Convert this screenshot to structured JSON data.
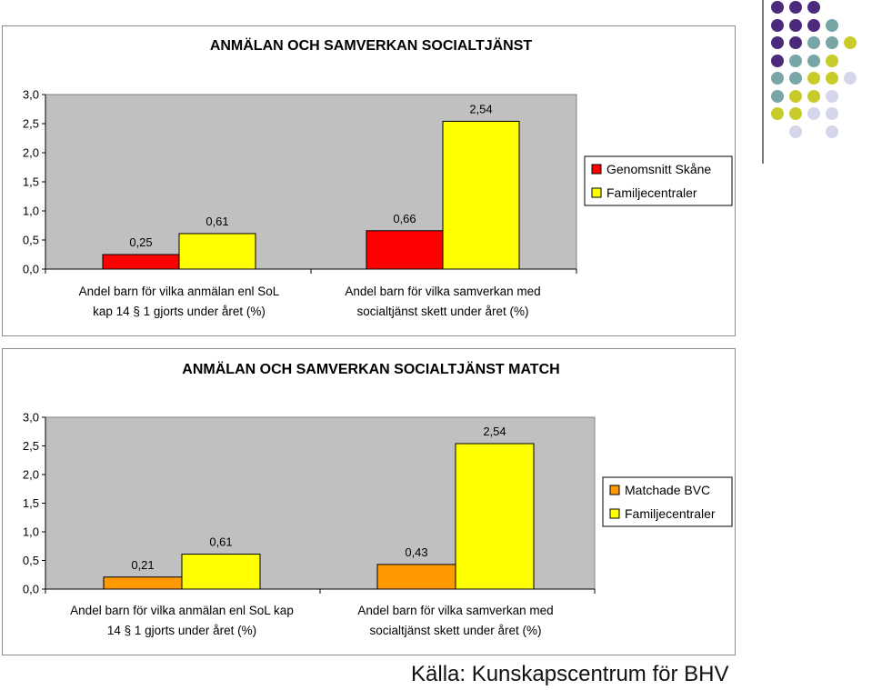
{
  "chart_data": [
    {
      "type": "bar",
      "title": "ANMÄLAN OCH SAMVERKAN SOCIALTJÄNST",
      "ylim": [
        0,
        3
      ],
      "yticks": [
        "3,0",
        "2,5",
        "2,0",
        "1,5",
        "1,0",
        "0,5",
        "0,0"
      ],
      "grid": false,
      "legend": "right",
      "categories": [
        [
          "Andel barn för vilka anmälan enl SoL",
          "kap 14 § 1 gjorts under året (%)"
        ],
        [
          "Andel barn för vilka samverkan med",
          "socialtjänst skett under året (%)"
        ]
      ],
      "series": [
        {
          "name": "Genomsnitt Skåne",
          "color": "#ff0000",
          "values": [
            0.25,
            0.66
          ],
          "labels": [
            "0,25",
            "0,66"
          ]
        },
        {
          "name": "Familjecentraler",
          "color": "#ffff00",
          "values": [
            0.61,
            2.54
          ],
          "labels": [
            "0,61",
            "2,54"
          ]
        }
      ]
    },
    {
      "type": "bar",
      "title": "ANMÄLAN OCH SAMVERKAN SOCIALTJÄNST MATCH",
      "ylim": [
        0,
        3
      ],
      "yticks": [
        "3,0",
        "2,5",
        "2,0",
        "1,5",
        "1,0",
        "0,5",
        "0,0"
      ],
      "grid": false,
      "legend": "right",
      "categories": [
        [
          "Andel barn för vilka anmälan enl SoL kap",
          "14 § 1 gjorts under året (%)"
        ],
        [
          "Andel barn för vilka samverkan med",
          "socialtjänst skett under året (%)"
        ]
      ],
      "series": [
        {
          "name": "Matchade BVC",
          "color": "#ff9900",
          "values": [
            0.21,
            0.43
          ],
          "labels": [
            "0,21",
            "0,43"
          ]
        },
        {
          "name": "Familjecentraler",
          "color": "#ffff00",
          "values": [
            0.61,
            2.54
          ],
          "labels": [
            "0,61",
            "2,54"
          ]
        }
      ]
    }
  ],
  "source": "Källa: Kunskapscentrum för BHV",
  "colors": {
    "plot_background": "#c0c0c0",
    "deco_purple": "#4b2a7b",
    "deco_teal": "#78a6a6",
    "deco_lime": "#c8cc2a",
    "deco_lavender": "#d6d6ea"
  }
}
